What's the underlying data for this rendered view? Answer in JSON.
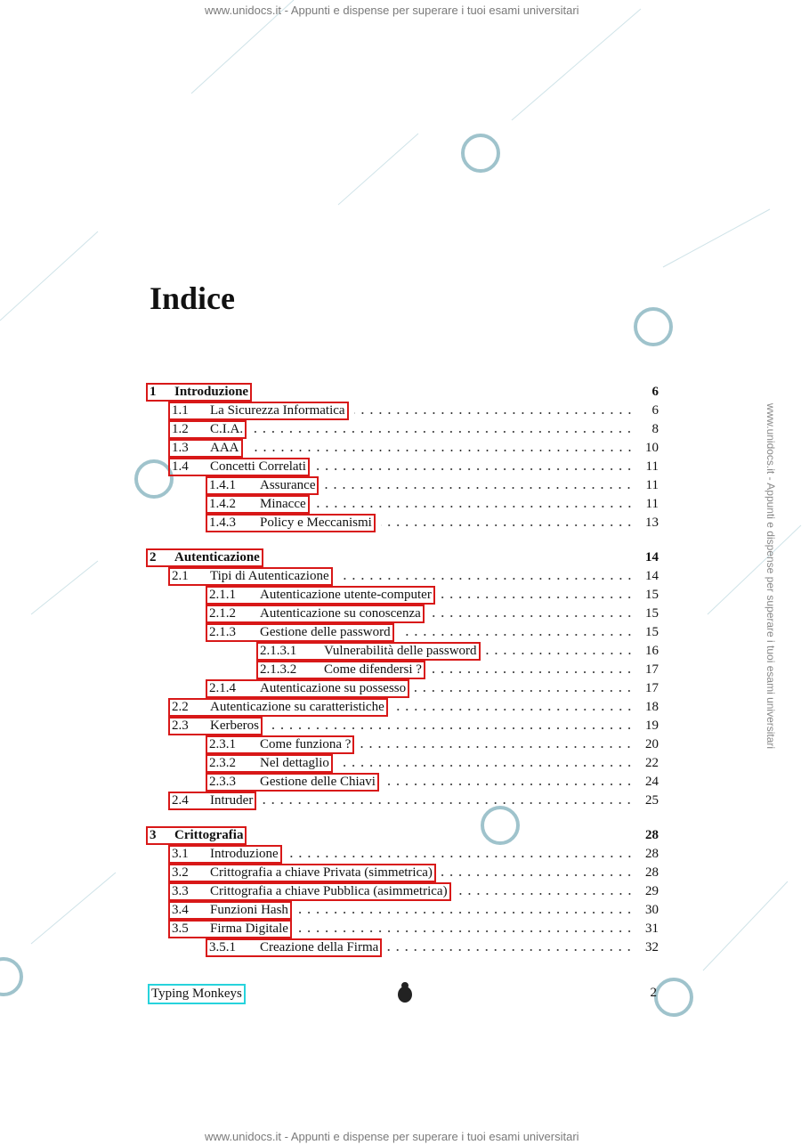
{
  "watermark": "www.unidocs.it - Appunti e dispense per superare i tuoi esami universitari",
  "title": "Indice",
  "entries": [
    {
      "number": "1",
      "title": "Introduzione",
      "page": 6,
      "level": 0
    },
    {
      "number": "1.1",
      "title": "La Sicurezza Informatica",
      "page": 6,
      "level": 1
    },
    {
      "number": "1.2",
      "title": "C.I.A.",
      "page": 8,
      "level": 1
    },
    {
      "number": "1.3",
      "title": "AAA",
      "page": 10,
      "level": 1
    },
    {
      "number": "1.4",
      "title": "Concetti Correlati",
      "page": 11,
      "level": 1
    },
    {
      "number": "1.4.1",
      "title": "Assurance",
      "page": 11,
      "level": 2
    },
    {
      "number": "1.4.2",
      "title": "Minacce",
      "page": 11,
      "level": 2
    },
    {
      "number": "1.4.3",
      "title": "Policy e Meccanismi",
      "page": 13,
      "level": 2
    },
    {
      "number": "2",
      "title": "Autenticazione",
      "page": 14,
      "level": 0
    },
    {
      "number": "2.1",
      "title": "Tipi di Autenticazione",
      "page": 14,
      "level": 1
    },
    {
      "number": "2.1.1",
      "title": "Autenticazione utente-computer",
      "page": 15,
      "level": 2
    },
    {
      "number": "2.1.2",
      "title": "Autenticazione su conoscenza",
      "page": 15,
      "level": 2
    },
    {
      "number": "2.1.3",
      "title": "Gestione delle password",
      "page": 15,
      "level": 2
    },
    {
      "number": "2.1.3.1",
      "title": "Vulnerabilità delle password",
      "page": 16,
      "level": 3
    },
    {
      "number": "2.1.3.2",
      "title": "Come difendersi ?",
      "page": 17,
      "level": 3
    },
    {
      "number": "2.1.4",
      "title": "Autenticazione su possesso",
      "page": 17,
      "level": 2
    },
    {
      "number": "2.2",
      "title": "Autenticazione su caratteristiche",
      "page": 18,
      "level": 1
    },
    {
      "number": "2.3",
      "title": "Kerberos",
      "page": 19,
      "level": 1
    },
    {
      "number": "2.3.1",
      "title": "Come funziona ?",
      "page": 20,
      "level": 2
    },
    {
      "number": "2.3.2",
      "title": "Nel dettaglio",
      "page": 22,
      "level": 2
    },
    {
      "number": "2.3.3",
      "title": "Gestione delle Chiavi",
      "page": 24,
      "level": 2
    },
    {
      "number": "2.4",
      "title": "Intruder",
      "page": 25,
      "level": 1
    },
    {
      "number": "3",
      "title": "Crittografia",
      "page": 28,
      "level": 0
    },
    {
      "number": "3.1",
      "title": "Introduzione",
      "page": 28,
      "level": 1
    },
    {
      "number": "3.2",
      "title": "Crittografia a chiave Privata (simmetrica)",
      "page": 28,
      "level": 1
    },
    {
      "number": "3.3",
      "title": "Crittografia a chiave Pubblica (asimmetrica)",
      "page": 29,
      "level": 1
    },
    {
      "number": "3.4",
      "title": "Funzioni Hash",
      "page": 30,
      "level": 1
    },
    {
      "number": "3.5",
      "title": "Firma Digitale",
      "page": 31,
      "level": 1
    },
    {
      "number": "3.5.1",
      "title": "Creazione della Firma",
      "page": 32,
      "level": 2
    }
  ],
  "footer": {
    "left": "Typing Monkeys",
    "page": 2
  }
}
